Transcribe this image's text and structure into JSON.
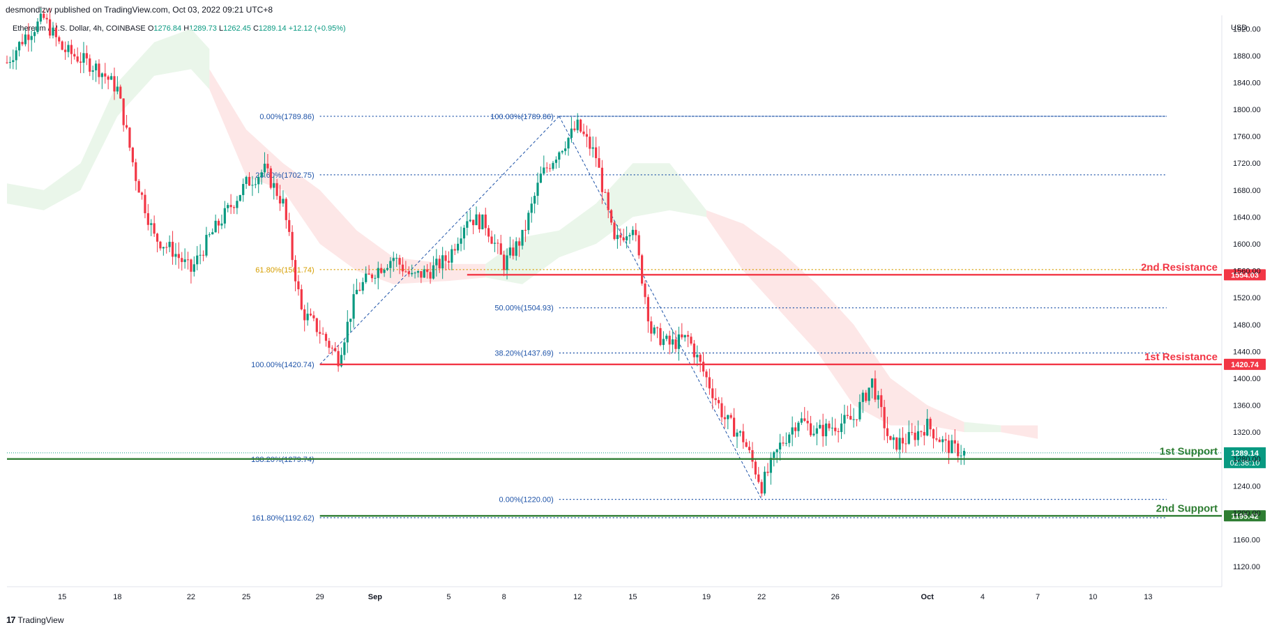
{
  "header": {
    "publisher": "desmondlzw published on TradingView.com, Oct 03, 2022 09:21 UTC+8",
    "symbol": "Ethereum / U.S. Dollar, 4h, COINBASE",
    "open_label": "O",
    "open": "1276.84",
    "high_label": "H",
    "high": "1289.73",
    "low_label": "L",
    "low": "1262.45",
    "close_label": "C",
    "close": "1289.14",
    "change": "+12.12 (+0.95%)",
    "currency": "USD"
  },
  "footer": {
    "logo_mark": "17",
    "logo_text": "TradingView"
  },
  "colors": {
    "up": "#089981",
    "down": "#f23645",
    "fib": "#1e53a8",
    "fib_gold": "#d69e00",
    "resistance": "#f23645",
    "support": "#2e7d32",
    "cloud_bull": "#e6f4e6",
    "cloud_bear": "#fde3e3"
  },
  "chart_data": {
    "type": "candlestick",
    "title": "",
    "xlabel": "",
    "ylabel": "",
    "ylim": [
      1090,
      1940
    ],
    "x_range": [
      "2022-08-12",
      "2022-10-17"
    ],
    "y_ticks": [
      "1120.00",
      "1160.00",
      "1200.00",
      "1240.00",
      "1280.00",
      "1320.00",
      "1360.00",
      "1400.00",
      "1440.00",
      "1480.00",
      "1520.00",
      "1560.00",
      "1600.00",
      "1640.00",
      "1680.00",
      "1720.00",
      "1760.00",
      "1800.00",
      "1840.00",
      "1880.00",
      "1920.00"
    ],
    "x_ticks": [
      {
        "label": "15",
        "date": "2022-08-15"
      },
      {
        "label": "18",
        "date": "2022-08-18"
      },
      {
        "label": "22",
        "date": "2022-08-22"
      },
      {
        "label": "25",
        "date": "2022-08-25"
      },
      {
        "label": "29",
        "date": "2022-08-29"
      },
      {
        "label": "Sep",
        "date": "2022-09-01"
      },
      {
        "label": "5",
        "date": "2022-09-05"
      },
      {
        "label": "8",
        "date": "2022-09-08"
      },
      {
        "label": "12",
        "date": "2022-09-12"
      },
      {
        "label": "15",
        "date": "2022-09-15"
      },
      {
        "label": "19",
        "date": "2022-09-19"
      },
      {
        "label": "22",
        "date": "2022-09-22"
      },
      {
        "label": "26",
        "date": "2022-09-26"
      },
      {
        "label": "Oct",
        "date": "2022-10-01"
      },
      {
        "label": "4",
        "date": "2022-10-04"
      },
      {
        "label": "7",
        "date": "2022-10-07"
      },
      {
        "label": "10",
        "date": "2022-10-10"
      },
      {
        "label": "13",
        "date": "2022-10-13"
      }
    ],
    "price_path": [
      [
        "2022-08-12",
        1870
      ],
      [
        "2022-08-13",
        1910
      ],
      [
        "2022-08-14",
        1935
      ],
      [
        "2022-08-15",
        1890
      ],
      [
        "2022-08-16",
        1875
      ],
      [
        "2022-08-17",
        1860
      ],
      [
        "2022-08-18",
        1830
      ],
      [
        "2022-08-19",
        1700
      ],
      [
        "2022-08-20",
        1610
      ],
      [
        "2022-08-21",
        1590
      ],
      [
        "2022-08-22",
        1560
      ],
      [
        "2022-08-23",
        1610
      ],
      [
        "2022-08-24",
        1650
      ],
      [
        "2022-08-25",
        1690
      ],
      [
        "2022-08-26",
        1710
      ],
      [
        "2022-08-27",
        1660
      ],
      [
        "2022-08-28",
        1500
      ],
      [
        "2022-08-29",
        1470
      ],
      [
        "2022-08-30",
        1430
      ],
      [
        "2022-08-31",
        1530
      ],
      [
        "2022-09-01",
        1560
      ],
      [
        "2022-09-02",
        1580
      ],
      [
        "2022-09-03",
        1550
      ],
      [
        "2022-09-04",
        1560
      ],
      [
        "2022-09-05",
        1580
      ],
      [
        "2022-09-06",
        1640
      ],
      [
        "2022-09-07",
        1630
      ],
      [
        "2022-09-08",
        1570
      ],
      [
        "2022-09-09",
        1610
      ],
      [
        "2022-09-10",
        1700
      ],
      [
        "2022-09-11",
        1740
      ],
      [
        "2022-09-12",
        1775
      ],
      [
        "2022-09-13",
        1730
      ],
      [
        "2022-09-14",
        1600
      ],
      [
        "2022-09-15",
        1630
      ],
      [
        "2022-09-16",
        1470
      ],
      [
        "2022-09-17",
        1450
      ],
      [
        "2022-09-18",
        1460
      ],
      [
        "2022-09-19",
        1400
      ],
      [
        "2022-09-20",
        1340
      ],
      [
        "2022-09-21",
        1310
      ],
      [
        "2022-09-22",
        1240
      ],
      [
        "2022-09-23",
        1300
      ],
      [
        "2022-09-24",
        1340
      ],
      [
        "2022-09-25",
        1320
      ],
      [
        "2022-09-26",
        1330
      ],
      [
        "2022-09-27",
        1340
      ],
      [
        "2022-09-28",
        1395
      ],
      [
        "2022-09-29",
        1300
      ],
      [
        "2022-09-30",
        1310
      ],
      [
        "2022-10-01",
        1330
      ],
      [
        "2022-10-02",
        1300
      ],
      [
        "2022-10-03",
        1289
      ]
    ],
    "cloud": [
      {
        "color": "bull",
        "points": [
          [
            "2022-08-12",
            1690,
            1660
          ],
          [
            "2022-08-14",
            1680,
            1650
          ],
          [
            "2022-08-16",
            1720,
            1680
          ],
          [
            "2022-08-18",
            1840,
            1790
          ],
          [
            "2022-08-20",
            1900,
            1850
          ],
          [
            "2022-08-22",
            1920,
            1860
          ],
          [
            "2022-08-23",
            1890,
            1830
          ]
        ]
      },
      {
        "color": "bear",
        "points": [
          [
            "2022-08-23",
            1830,
            1860
          ],
          [
            "2022-08-25",
            1700,
            1770
          ],
          [
            "2022-08-27",
            1680,
            1720
          ],
          [
            "2022-08-29",
            1600,
            1680
          ],
          [
            "2022-08-31",
            1560,
            1620
          ],
          [
            "2022-09-02",
            1540,
            1580
          ],
          [
            "2022-09-05",
            1545,
            1570
          ],
          [
            "2022-09-07",
            1550,
            1570
          ]
        ]
      },
      {
        "color": "bull",
        "points": [
          [
            "2022-09-07",
            1570,
            1550
          ],
          [
            "2022-09-09",
            1610,
            1540
          ],
          [
            "2022-09-11",
            1620,
            1580
          ],
          [
            "2022-09-13",
            1660,
            1600
          ],
          [
            "2022-09-15",
            1720,
            1640
          ],
          [
            "2022-09-17",
            1720,
            1650
          ],
          [
            "2022-09-19",
            1650,
            1640
          ]
        ]
      },
      {
        "color": "bear",
        "points": [
          [
            "2022-09-19",
            1640,
            1650
          ],
          [
            "2022-09-21",
            1560,
            1630
          ],
          [
            "2022-09-23",
            1500,
            1590
          ],
          [
            "2022-09-25",
            1440,
            1540
          ],
          [
            "2022-09-27",
            1360,
            1480
          ],
          [
            "2022-09-29",
            1330,
            1400
          ],
          [
            "2022-10-01",
            1330,
            1360
          ],
          [
            "2022-10-03",
            1320,
            1335
          ]
        ]
      },
      {
        "color": "bull",
        "points": [
          [
            "2022-10-03",
            1335,
            1320
          ],
          [
            "2022-10-05",
            1330,
            1320
          ]
        ]
      },
      {
        "color": "bear",
        "points": [
          [
            "2022-10-05",
            1320,
            1330
          ],
          [
            "2022-10-07",
            1310,
            1330
          ]
        ]
      }
    ],
    "fib_sets": [
      {
        "anchor_start": "2022-08-29",
        "end": "2022-10-14",
        "levels": [
          {
            "label": "0.00%(1789.86)",
            "value": 1789.86,
            "label_date": "2022-08-29"
          },
          {
            "label": "23.60%(1702.75)",
            "value": 1702.75,
            "label_date": "2022-08-29"
          },
          {
            "label": "61.80%(1561.74)",
            "value": 1561.74,
            "label_date": "2022-08-29",
            "gold": true
          },
          {
            "label": "100.00%(1420.74)",
            "value": 1420.74,
            "label_date": "2022-08-29"
          },
          {
            "label": "138.20%(1279.74)",
            "value": 1279.74,
            "label_date": "2022-08-29"
          },
          {
            "label": "161.80%(1192.62)",
            "value": 1192.62,
            "label_date": "2022-08-29"
          }
        ]
      },
      {
        "anchor_start": "2022-09-11",
        "end": "2022-10-14",
        "levels": [
          {
            "label": "100.00%(1789.86)",
            "value": 1789.86,
            "label_date": "2022-09-11"
          },
          {
            "label": "50.00%(1504.93)",
            "value": 1504.93,
            "label_date": "2022-09-11"
          },
          {
            "label": "38.20%(1437.69)",
            "value": 1437.69,
            "label_date": "2022-09-11"
          },
          {
            "label": "0.00%(1220.00)",
            "value": 1220.0,
            "label_date": "2022-09-11"
          }
        ]
      }
    ],
    "trend_lines": [
      {
        "from": [
          "2022-08-29",
          1420.74
        ],
        "to": [
          "2022-09-11",
          1789.86
        ]
      },
      {
        "from": [
          "2022-09-11",
          1789.86
        ],
        "to": [
          "2022-09-22",
          1220.0
        ]
      }
    ],
    "zones": [
      {
        "label": "2nd Resistance",
        "value": 1554.03,
        "badge": "1554.03",
        "type": "resistance",
        "from": "2022-09-06"
      },
      {
        "label": "1st Resistance",
        "value": 1420.74,
        "badge": "1420.74",
        "type": "resistance",
        "from": "2022-08-29"
      },
      {
        "label": "1st Support",
        "value": 1280.0,
        "badge": "1280.00",
        "type": "support",
        "from": "2022-08-12"
      },
      {
        "label": "2nd Support",
        "value": 1195.42,
        "badge": "1195.42",
        "type": "support",
        "from": "2022-08-29"
      }
    ],
    "last_price": {
      "value": 1289.14,
      "badge": "1289.14",
      "timer": "02:38:10"
    }
  }
}
